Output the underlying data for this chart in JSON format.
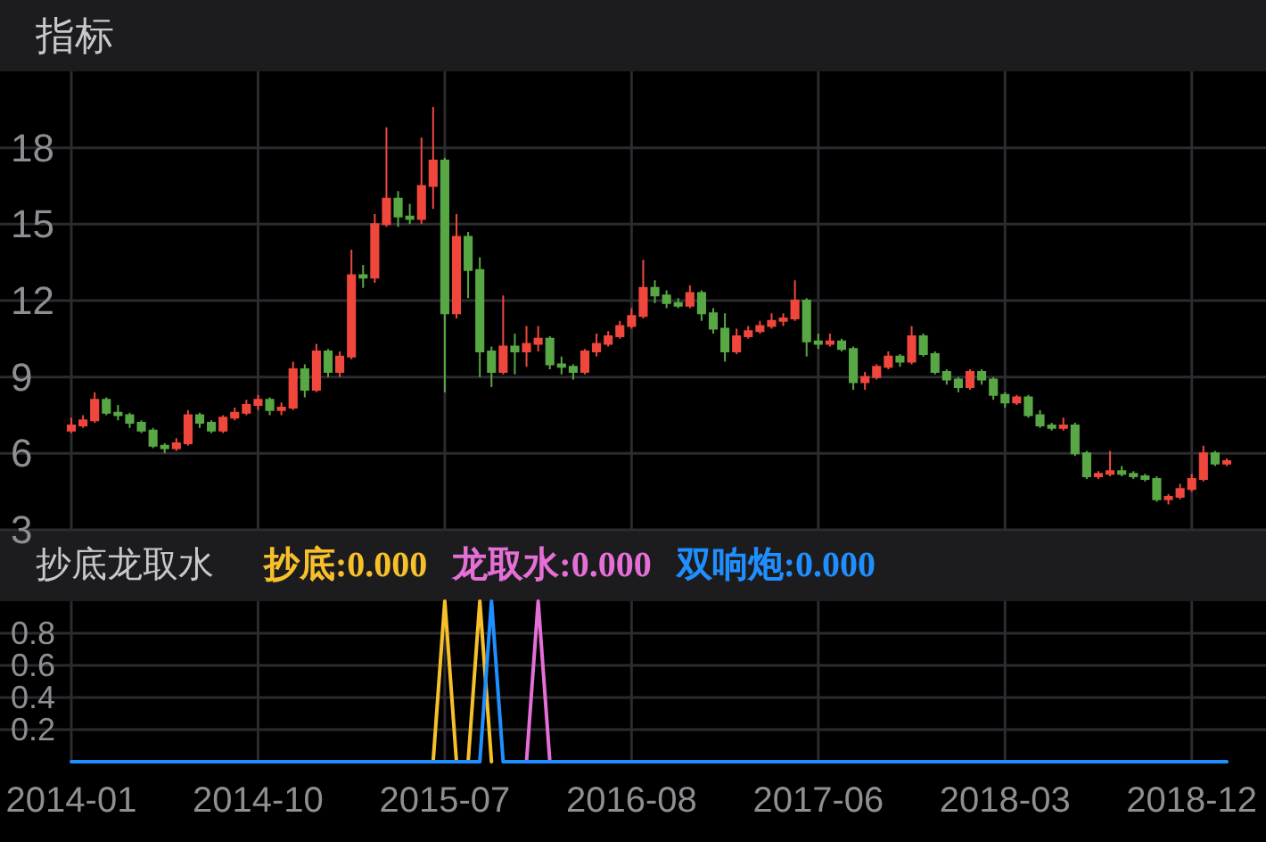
{
  "chart_data": [
    {
      "type": "candlestick",
      "title": "指标",
      "categories": [
        "2014-01",
        null,
        null,
        null,
        null,
        null,
        null,
        null,
        null,
        null,
        null,
        null,
        null,
        null,
        null,
        null,
        "2014-10",
        null,
        null,
        null,
        null,
        null,
        null,
        null,
        null,
        null,
        null,
        null,
        null,
        null,
        null,
        null,
        "2015-07",
        null,
        null,
        null,
        null,
        null,
        null,
        null,
        null,
        null,
        null,
        null,
        null,
        null,
        null,
        null,
        "2016-08",
        null,
        null,
        null,
        null,
        null,
        null,
        null,
        null,
        null,
        null,
        null,
        null,
        null,
        null,
        null,
        "2017-06",
        null,
        null,
        null,
        null,
        null,
        null,
        null,
        null,
        null,
        null,
        null,
        null,
        null,
        null,
        null,
        "2018-03",
        null,
        null,
        null,
        null,
        null,
        null,
        null,
        null,
        null,
        null,
        null,
        null,
        null,
        null,
        null,
        "2018-12",
        null,
        null,
        null
      ],
      "ohlc": [
        [
          6.9,
          7.4,
          6.8,
          7.1
        ],
        [
          7.1,
          7.5,
          7.0,
          7.3
        ],
        [
          7.3,
          8.4,
          7.2,
          8.1
        ],
        [
          8.1,
          8.2,
          7.5,
          7.6
        ],
        [
          7.6,
          7.9,
          7.3,
          7.5
        ],
        [
          7.5,
          7.6,
          7.0,
          7.2
        ],
        [
          7.2,
          7.3,
          6.8,
          6.9
        ],
        [
          6.9,
          7.0,
          6.2,
          6.3
        ],
        [
          6.3,
          6.4,
          6.0,
          6.2
        ],
        [
          6.2,
          6.6,
          6.1,
          6.4
        ],
        [
          6.4,
          7.7,
          6.3,
          7.5
        ],
        [
          7.5,
          7.6,
          7.0,
          7.2
        ],
        [
          7.2,
          7.3,
          6.8,
          6.9
        ],
        [
          6.9,
          7.5,
          6.8,
          7.4
        ],
        [
          7.4,
          7.8,
          7.3,
          7.6
        ],
        [
          7.6,
          8.1,
          7.5,
          7.9
        ],
        [
          7.9,
          8.3,
          7.7,
          8.1
        ],
        [
          8.1,
          8.2,
          7.5,
          7.7
        ],
        [
          7.7,
          8.0,
          7.5,
          7.8
        ],
        [
          7.8,
          9.6,
          7.7,
          9.3
        ],
        [
          9.3,
          9.5,
          8.2,
          8.5
        ],
        [
          8.5,
          10.3,
          8.4,
          10.0
        ],
        [
          10.0,
          10.1,
          9.0,
          9.2
        ],
        [
          9.2,
          10.0,
          9.0,
          9.8
        ],
        [
          9.8,
          14.0,
          9.7,
          13.0
        ],
        [
          13.0,
          13.4,
          12.5,
          12.9
        ],
        [
          12.9,
          15.4,
          12.7,
          15.0
        ],
        [
          15.0,
          18.8,
          14.9,
          16.0
        ],
        [
          16.0,
          16.3,
          14.9,
          15.3
        ],
        [
          15.3,
          15.8,
          15.0,
          15.2
        ],
        [
          15.2,
          18.4,
          15.0,
          16.5
        ],
        [
          16.5,
          19.6,
          15.6,
          17.5
        ],
        [
          17.5,
          17.6,
          8.4,
          11.5
        ],
        [
          11.5,
          15.4,
          11.3,
          14.5
        ],
        [
          14.5,
          14.7,
          12.1,
          13.2
        ],
        [
          13.2,
          13.7,
          9.0,
          10.0
        ],
        [
          10.0,
          10.2,
          8.6,
          9.2
        ],
        [
          9.2,
          12.2,
          9.1,
          10.2
        ],
        [
          10.2,
          10.7,
          9.1,
          10.0
        ],
        [
          10.0,
          11.0,
          9.4,
          10.3
        ],
        [
          10.3,
          11.0,
          10.0,
          10.5
        ],
        [
          10.5,
          10.6,
          9.3,
          9.5
        ],
        [
          9.5,
          9.8,
          9.1,
          9.4
        ],
        [
          9.4,
          9.5,
          8.9,
          9.2
        ],
        [
          9.2,
          10.1,
          9.1,
          10.0
        ],
        [
          10.0,
          10.7,
          9.8,
          10.3
        ],
        [
          10.3,
          10.8,
          10.2,
          10.6
        ],
        [
          10.6,
          11.2,
          10.5,
          11.0
        ],
        [
          11.0,
          11.7,
          10.9,
          11.4
        ],
        [
          11.4,
          13.6,
          11.3,
          12.5
        ],
        [
          12.5,
          12.8,
          11.9,
          12.2
        ],
        [
          12.2,
          12.4,
          11.7,
          11.9
        ],
        [
          11.9,
          12.1,
          11.7,
          11.8
        ],
        [
          11.8,
          12.6,
          11.7,
          12.3
        ],
        [
          12.3,
          12.4,
          11.2,
          11.5
        ],
        [
          11.5,
          11.7,
          10.7,
          10.9
        ],
        [
          10.9,
          11.5,
          9.6,
          10.0
        ],
        [
          10.0,
          10.9,
          9.9,
          10.6
        ],
        [
          10.6,
          11.0,
          10.5,
          10.8
        ],
        [
          10.8,
          11.2,
          10.7,
          11.0
        ],
        [
          11.0,
          11.5,
          10.9,
          11.2
        ],
        [
          11.2,
          11.5,
          11.0,
          11.3
        ],
        [
          11.3,
          12.8,
          11.2,
          12.0
        ],
        [
          12.0,
          12.1,
          9.8,
          10.4
        ],
        [
          10.4,
          10.7,
          10.1,
          10.3
        ],
        [
          10.3,
          10.7,
          10.2,
          10.4
        ],
        [
          10.4,
          10.5,
          10.0,
          10.1
        ],
        [
          10.1,
          10.2,
          8.5,
          8.8
        ],
        [
          8.8,
          9.2,
          8.5,
          9.0
        ],
        [
          9.0,
          9.5,
          8.9,
          9.4
        ],
        [
          9.4,
          10.0,
          9.3,
          9.8
        ],
        [
          9.8,
          9.9,
          9.4,
          9.6
        ],
        [
          9.6,
          11.0,
          9.5,
          10.6
        ],
        [
          10.6,
          10.7,
          9.8,
          9.9
        ],
        [
          9.9,
          10.0,
          9.1,
          9.2
        ],
        [
          9.2,
          9.3,
          8.7,
          8.9
        ],
        [
          8.9,
          9.0,
          8.4,
          8.6
        ],
        [
          8.6,
          9.3,
          8.5,
          9.2
        ],
        [
          9.2,
          9.3,
          8.7,
          8.9
        ],
        [
          8.9,
          9.0,
          8.1,
          8.3
        ],
        [
          8.3,
          8.4,
          7.8,
          8.0
        ],
        [
          8.0,
          8.3,
          7.9,
          8.2
        ],
        [
          8.2,
          8.3,
          7.4,
          7.5
        ],
        [
          7.5,
          7.7,
          7.0,
          7.1
        ],
        [
          7.1,
          7.2,
          6.9,
          7.0
        ],
        [
          7.0,
          7.4,
          6.9,
          7.1
        ],
        [
          7.1,
          7.2,
          5.9,
          6.0
        ],
        [
          6.0,
          6.1,
          5.0,
          5.1
        ],
        [
          5.1,
          5.3,
          5.0,
          5.2
        ],
        [
          5.2,
          6.1,
          5.1,
          5.3
        ],
        [
          5.3,
          5.5,
          5.1,
          5.2
        ],
        [
          5.2,
          5.3,
          5.0,
          5.1
        ],
        [
          5.1,
          5.2,
          4.9,
          5.0
        ],
        [
          5.0,
          5.1,
          4.1,
          4.2
        ],
        [
          4.2,
          4.4,
          4.0,
          4.3
        ],
        [
          4.3,
          4.8,
          4.2,
          4.6
        ],
        [
          4.6,
          5.2,
          4.5,
          5.0
        ],
        [
          5.0,
          6.3,
          4.9,
          6.0
        ],
        [
          6.0,
          6.1,
          5.5,
          5.6
        ],
        [
          5.6,
          5.8,
          5.5,
          5.7
        ]
      ],
      "colors": [
        "#f0473d",
        "#f0473d",
        "#f0473d",
        "#58a845",
        "#58a845",
        "#58a845",
        "#58a845",
        "#58a845",
        "#58a845",
        "#f0473d",
        "#f0473d",
        "#58a845",
        "#58a845",
        "#f0473d",
        "#f0473d",
        "#f0473d",
        "#f0473d",
        "#58a845",
        "#f0473d",
        "#f0473d",
        "#58a845",
        "#f0473d",
        "#58a845",
        "#f0473d",
        "#f0473d",
        "#58a845",
        "#f0473d",
        "#f0473d",
        "#58a845",
        "#58a845",
        "#f0473d",
        "#f0473d",
        "#58a845",
        "#f0473d",
        "#58a845",
        "#58a845",
        "#58a845",
        "#f0473d",
        "#58a845",
        "#f0473d",
        "#f0473d",
        "#58a845",
        "#58a845",
        "#58a845",
        "#f0473d",
        "#f0473d",
        "#f0473d",
        "#f0473d",
        "#f0473d",
        "#f0473d",
        "#58a845",
        "#58a845",
        "#58a845",
        "#f0473d",
        "#58a845",
        "#58a845",
        "#58a845",
        "#f0473d",
        "#f0473d",
        "#f0473d",
        "#f0473d",
        "#f0473d",
        "#f0473d",
        "#58a845",
        "#58a845",
        "#f0473d",
        "#58a845",
        "#58a845",
        "#f0473d",
        "#f0473d",
        "#f0473d",
        "#58a845",
        "#f0473d",
        "#58a845",
        "#58a845",
        "#58a845",
        "#58a845",
        "#f0473d",
        "#58a845",
        "#58a845",
        "#58a845",
        "#f0473d",
        "#58a845",
        "#58a845",
        "#58a845",
        "#f0473d",
        "#58a845",
        "#58a845",
        "#f0473d",
        "#f0473d",
        "#58a845",
        "#58a845",
        "#58a845",
        "#58a845",
        "#f0473d",
        "#f0473d",
        "#f0473d",
        "#f0473d",
        "#58a845",
        "#f0473d"
      ],
      "ylim": [
        3,
        21
      ],
      "yticks": [
        3,
        6,
        9,
        12,
        15,
        18
      ],
      "grid": true,
      "tick_labels": "y"
    },
    {
      "type": "line",
      "title": "抄底龙取水",
      "categories": [
        "2014-01",
        null,
        null,
        null,
        null,
        null,
        null,
        null,
        null,
        null,
        null,
        null,
        null,
        null,
        null,
        null,
        "2014-10",
        null,
        null,
        null,
        null,
        null,
        null,
        null,
        null,
        null,
        null,
        null,
        null,
        null,
        null,
        null,
        "2015-07",
        null,
        null,
        null,
        null,
        null,
        null,
        null,
        null,
        null,
        null,
        null,
        null,
        null,
        null,
        null,
        "2016-08",
        null,
        null,
        null,
        null,
        null,
        null,
        null,
        null,
        null,
        null,
        null,
        null,
        null,
        null,
        null,
        "2017-06",
        null,
        null,
        null,
        null,
        null,
        null,
        null,
        null,
        null,
        null,
        null,
        null,
        null,
        null,
        null,
        "2018-03",
        null,
        null,
        null,
        null,
        null,
        null,
        null,
        null,
        null,
        null,
        null,
        null,
        null,
        null,
        null,
        "2018-12",
        null,
        null,
        null
      ],
      "series": [
        {
          "name": "抄底:0.000",
          "color": "#f7bf2a",
          "values": [
            null,
            null,
            null,
            null,
            null,
            null,
            null,
            null,
            null,
            null,
            null,
            null,
            null,
            null,
            null,
            null,
            null,
            null,
            null,
            null,
            null,
            null,
            null,
            null,
            null,
            null,
            null,
            null,
            null,
            null,
            null,
            0,
            1,
            0,
            0,
            1,
            0,
            null,
            null,
            null,
            null,
            null,
            null,
            null,
            null,
            null,
            null,
            null,
            null,
            null,
            null,
            null,
            null,
            null,
            null,
            null,
            null,
            null,
            null,
            null,
            null,
            null,
            null,
            null,
            null,
            null,
            null,
            null,
            null,
            null,
            null,
            null,
            null,
            null,
            null,
            null,
            null,
            null,
            null,
            null,
            null,
            null,
            null,
            null,
            null,
            null,
            null,
            null,
            null,
            null,
            null,
            null,
            null,
            null,
            null,
            null,
            null,
            null,
            null,
            null
          ]
        },
        {
          "name": "龙取水:0.000",
          "color": "#e46fd6",
          "values": [
            null,
            null,
            null,
            null,
            null,
            null,
            null,
            null,
            null,
            null,
            null,
            null,
            null,
            null,
            null,
            null,
            null,
            null,
            null,
            null,
            null,
            null,
            null,
            null,
            null,
            null,
            null,
            null,
            null,
            null,
            null,
            null,
            null,
            null,
            null,
            null,
            null,
            null,
            null,
            0,
            1,
            0,
            null,
            null,
            null,
            null,
            null,
            null,
            null,
            null,
            null,
            null,
            null,
            null,
            null,
            null,
            null,
            null,
            null,
            null,
            null,
            null,
            null,
            null,
            null,
            null,
            null,
            null,
            null,
            null,
            null,
            null,
            null,
            null,
            null,
            null,
            null,
            null,
            null,
            null,
            null,
            null,
            null,
            null,
            null,
            null,
            null,
            null,
            null,
            null,
            null,
            null,
            null,
            null,
            null,
            null,
            null,
            null,
            null,
            null
          ]
        },
        {
          "name": "双响炮:0.000",
          "color": "#1f8fff",
          "values": [
            0,
            0,
            0,
            0,
            0,
            0,
            0,
            0,
            0,
            0,
            0,
            0,
            0,
            0,
            0,
            0,
            0,
            0,
            0,
            0,
            0,
            0,
            0,
            0,
            0,
            0,
            0,
            0,
            0,
            0,
            0,
            0,
            0,
            0,
            0,
            0,
            1,
            0,
            0,
            0,
            0,
            0,
            0,
            0,
            0,
            0,
            0,
            0,
            0,
            0,
            0,
            0,
            0,
            0,
            0,
            0,
            0,
            0,
            0,
            0,
            0,
            0,
            0,
            0,
            0,
            0,
            0,
            0,
            0,
            0,
            0,
            0,
            0,
            0,
            0,
            0,
            0,
            0,
            0,
            0,
            0,
            0,
            0,
            0,
            0,
            0,
            0,
            0,
            0,
            0,
            0,
            0,
            0,
            0,
            0,
            0,
            0,
            0,
            0,
            0
          ]
        }
      ],
      "ylim": [
        0,
        1
      ],
      "yticks": [
        0.2,
        0.4,
        0.6,
        0.8
      ],
      "grid": true,
      "legend": "top"
    }
  ]
}
